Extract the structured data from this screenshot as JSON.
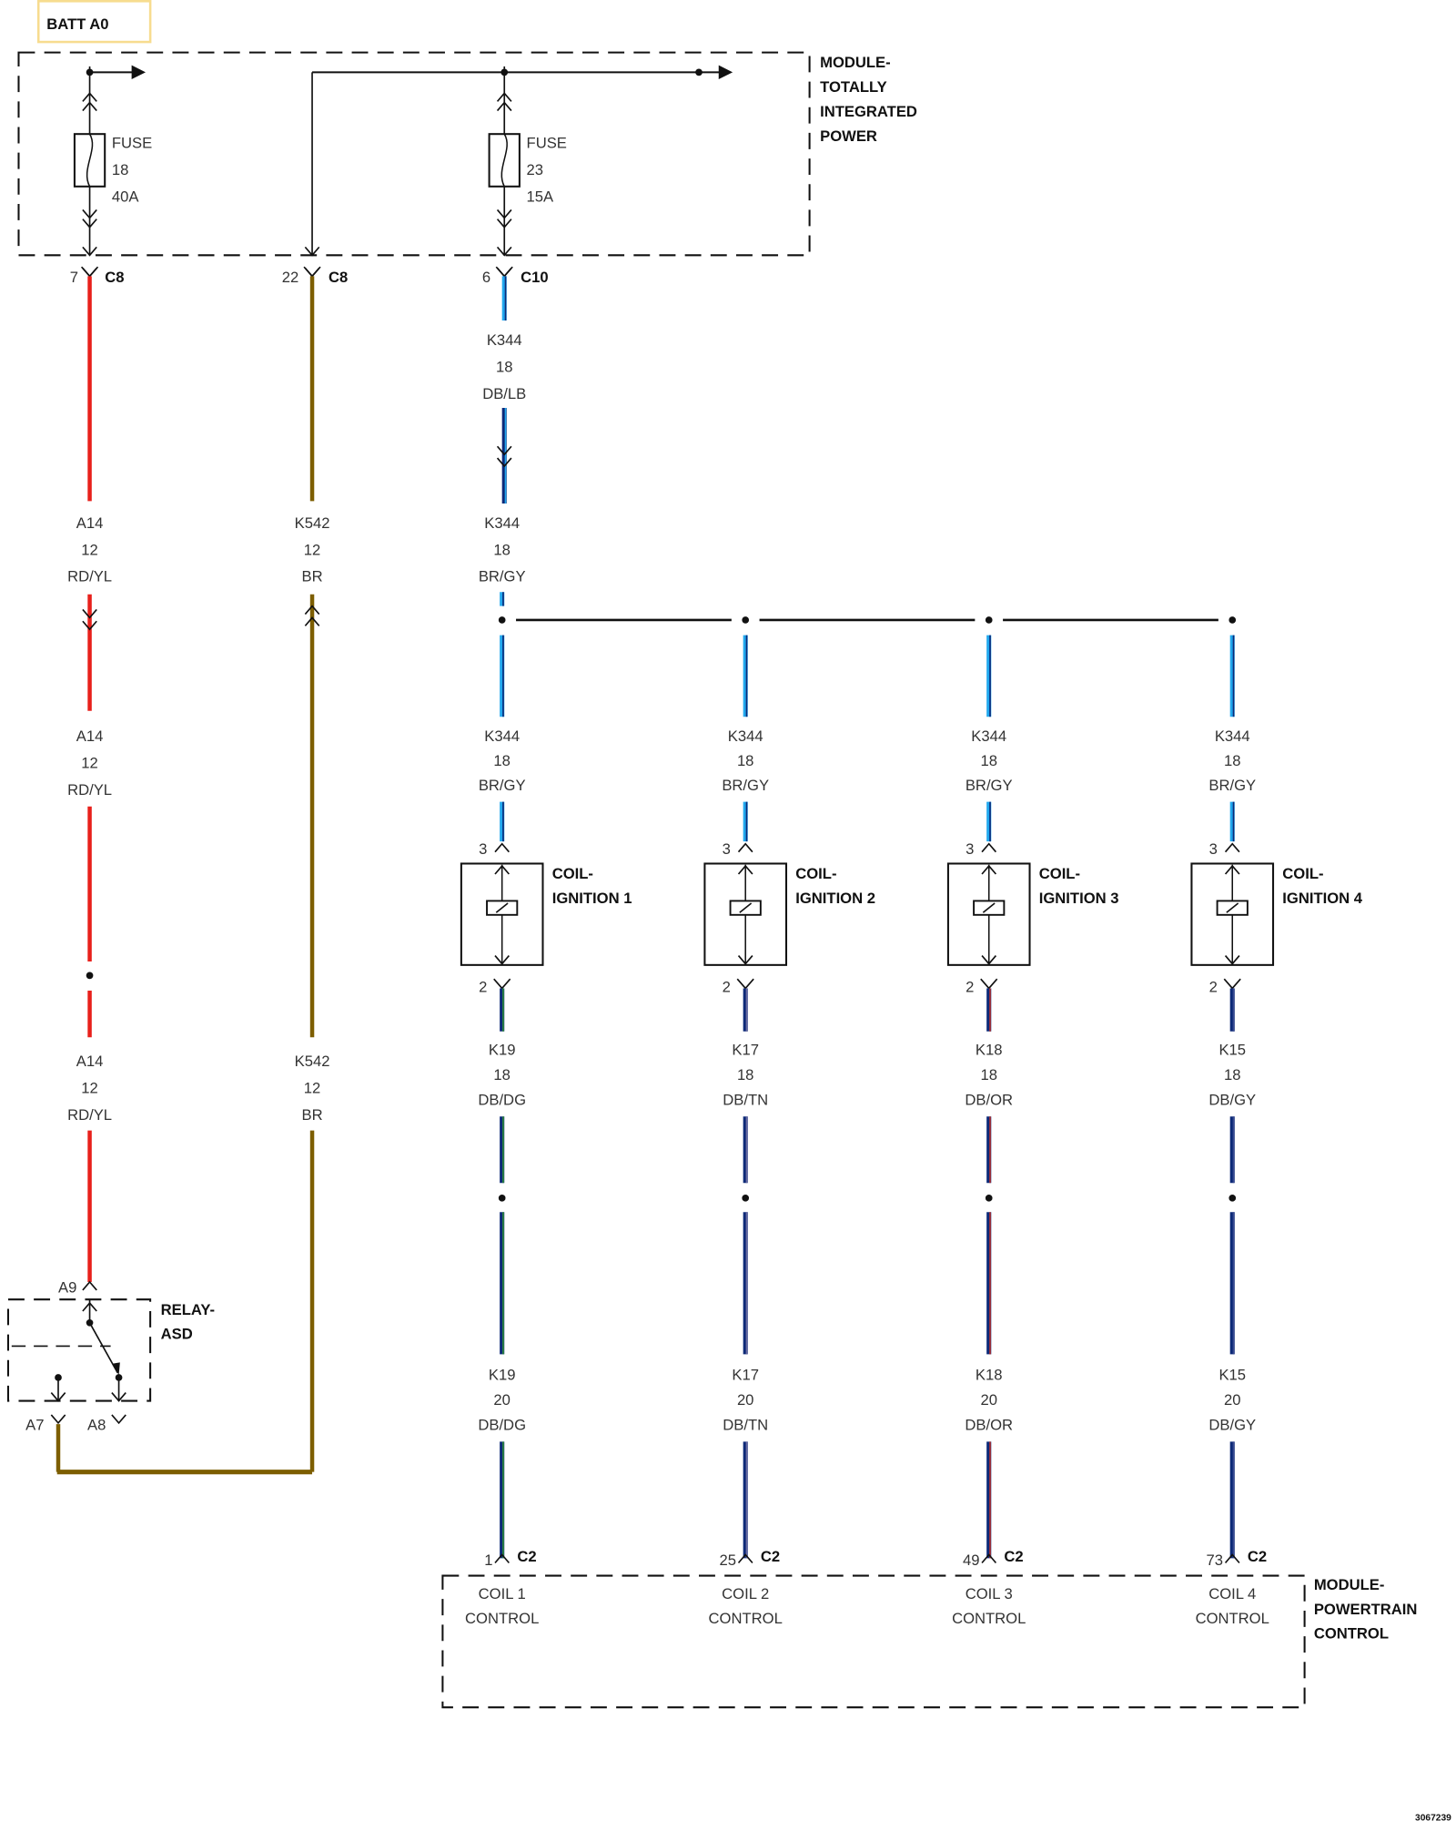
{
  "battery": {
    "label": "BATT A0",
    "box_color": "#f7dc8f"
  },
  "tipm": {
    "lines": [
      "MODULE-",
      "TOTALLY",
      "INTEGRATED",
      "POWER"
    ],
    "fuses": [
      {
        "label": "FUSE",
        "number": "18",
        "rating": "40A"
      },
      {
        "label": "FUSE",
        "number": "23",
        "rating": "15A"
      }
    ],
    "connectors": [
      {
        "pin": "7",
        "conn": "C8"
      },
      {
        "pin": "22",
        "conn": "C8"
      },
      {
        "pin": "6",
        "conn": "C10"
      }
    ]
  },
  "wires": {
    "a14_1": [
      "A14",
      "12",
      "RD/YL"
    ],
    "a14_2": [
      "A14",
      "12",
      "RD/YL"
    ],
    "a14_3": [
      "A14",
      "12",
      "RD/YL"
    ],
    "k542_1": [
      "K542",
      "12",
      "BR"
    ],
    "k542_2": [
      "K542",
      "12",
      "BR"
    ],
    "k344_1": [
      "K344",
      "18",
      "DB/LB"
    ],
    "k344_2": [
      "K344",
      "18",
      "BR/GY"
    ]
  },
  "coils": [
    {
      "name": [
        "COIL-",
        "IGNITION 1"
      ],
      "pin_in": "3",
      "pin_out": "2",
      "in_wire": [
        "K344",
        "18",
        "BR/GY"
      ],
      "out_wire": [
        "K19",
        "18",
        "DB/DG"
      ],
      "pcm_wire": [
        "K19",
        "20",
        "DB/DG"
      ],
      "pcm_pin": "1",
      "pcm_conn": "C2",
      "pcm_label": [
        "COIL 1",
        "CONTROL"
      ],
      "stripe": "#2e8b3a"
    },
    {
      "name": [
        "COIL-",
        "IGNITION 2"
      ],
      "pin_in": "3",
      "pin_out": "2",
      "in_wire": [
        "K344",
        "18",
        "BR/GY"
      ],
      "out_wire": [
        "K17",
        "18",
        "DB/TN"
      ],
      "pcm_wire": [
        "K17",
        "20",
        "DB/TN"
      ],
      "pcm_pin": "25",
      "pcm_conn": "C2",
      "pcm_label": [
        "COIL 2",
        "CONTROL"
      ],
      "stripe": "#6a6aa0"
    },
    {
      "name": [
        "COIL-",
        "IGNITION 3"
      ],
      "pin_in": "3",
      "pin_out": "2",
      "in_wire": [
        "K344",
        "18",
        "BR/GY"
      ],
      "out_wire": [
        "K18",
        "18",
        "DB/OR"
      ],
      "pcm_wire": [
        "K18",
        "20",
        "DB/OR"
      ],
      "pcm_pin": "49",
      "pcm_conn": "C2",
      "pcm_label": [
        "COIL 3",
        "CONTROL"
      ],
      "stripe": "#b03030"
    },
    {
      "name": [
        "COIL-",
        "IGNITION 4"
      ],
      "pin_in": "3",
      "pin_out": "2",
      "in_wire": [
        "K344",
        "18",
        "BR/GY"
      ],
      "out_wire": [
        "K15",
        "18",
        "DB/GY"
      ],
      "pcm_wire": [
        "K15",
        "20",
        "DB/GY"
      ],
      "pcm_pin": "73",
      "pcm_conn": "C2",
      "pcm_label": [
        "COIL 4",
        "CONTROL"
      ],
      "stripe": "#3a4a90"
    }
  ],
  "relay": {
    "lines": [
      "RELAY-",
      "ASD"
    ],
    "pins": [
      "A9",
      "A7",
      "A8"
    ]
  },
  "pcm": {
    "lines": [
      "MODULE-",
      "POWERTRAIN",
      "CONTROL"
    ]
  },
  "figure_id": "3067239",
  "colors": {
    "red": "#e8201b",
    "brown": "#7d5e00",
    "dark_blue": "#0d2a78",
    "light_blue": "#22a8ee",
    "line": "#111111"
  }
}
